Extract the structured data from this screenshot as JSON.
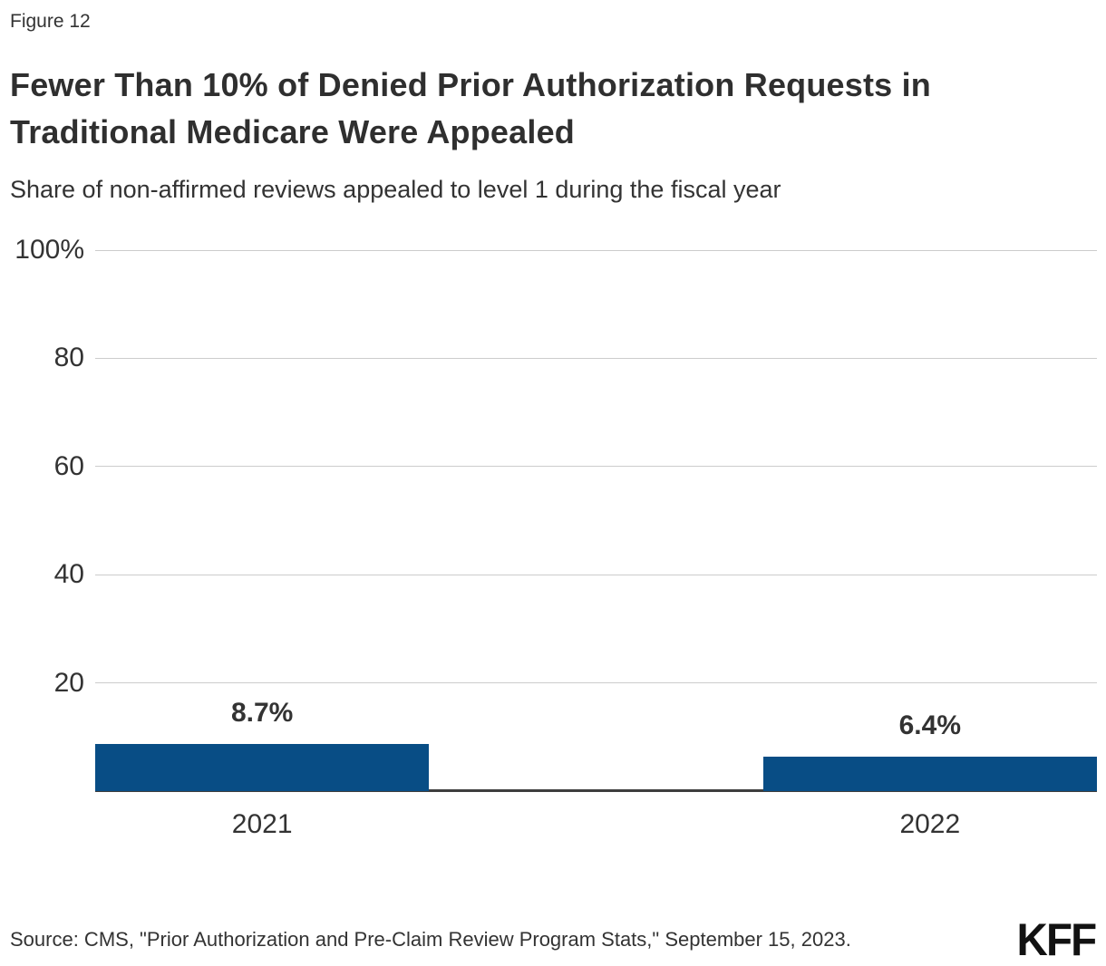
{
  "figure_label": "Figure 12",
  "header": {
    "title_lines": [
      "Fewer Than 10% of Denied Prior Authorization Requests in",
      "Traditional Medicare Were Appealed"
    ],
    "subtitle": "Share of non-affirmed reviews appealed to level 1 during the fiscal year"
  },
  "chart_data": {
    "type": "bar",
    "title": "Fewer Than 10% of Denied Prior Authorization Requests in Traditional Medicare Were Appealed",
    "subtitle": "Share of non-affirmed reviews appealed to level 1 during the fiscal year",
    "categories": [
      "2021",
      "2022"
    ],
    "values": [
      8.7,
      6.4
    ],
    "value_labels": [
      "8.7%",
      "6.4%"
    ],
    "xlabel": "",
    "ylabel": "",
    "ylim": [
      0,
      100
    ],
    "ytick_values": [
      20,
      40,
      60,
      80,
      100
    ],
    "ytick_labels": [
      "20",
      "40",
      "60",
      "80",
      "100%"
    ],
    "grid": "horizontal",
    "legend": "none",
    "bar_color": "#084d85",
    "gridline_color": "#cccccc",
    "axis_color": "#3e3e3e"
  },
  "footer": {
    "source": "Source: CMS, \"Prior Authorization and Pre-Claim Review Program Stats,\" September 15, 2023.",
    "logo": "KFF"
  }
}
